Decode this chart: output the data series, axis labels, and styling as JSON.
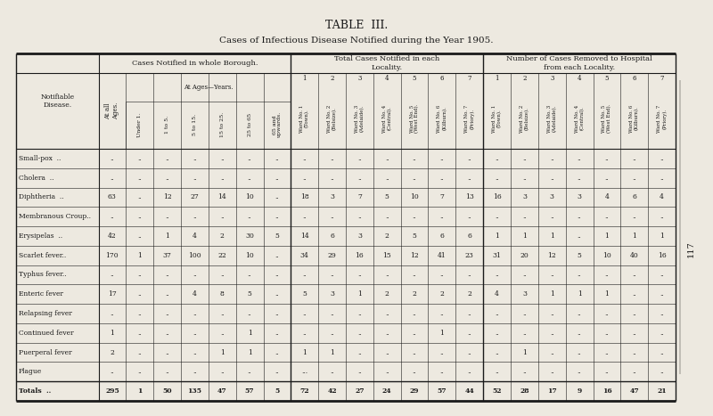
{
  "title": "TABLE  III.",
  "subtitle": "Cases of Infectious Disease Notified during the Year 1905.",
  "bg_color": "#ede9e0",
  "text_color": "#1a1a1a",
  "diseases": [
    "Small-pox  ..",
    "Cholera  ..",
    "Diphtheria  ..",
    "Membranous Croup..",
    "Erysipelas  ..",
    "Scarlet fever..",
    "Typhus fever..",
    "Enteric fever",
    "Relapsing fever",
    "Continued fever",
    "Puerperal fever",
    "Plague",
    "Totals  .."
  ],
  "data": [
    [
      "..",
      "..",
      "..",
      "..",
      "..",
      "..",
      "..",
      "..",
      "..",
      "..",
      "..",
      "..",
      "..",
      "..",
      "..",
      "..",
      "..",
      "..",
      "..",
      "..",
      ".."
    ],
    [
      "..",
      "..",
      "..",
      "..",
      "..",
      "..",
      "..",
      "..",
      "..",
      "..",
      "..",
      "..",
      "..",
      "..",
      "..",
      "..",
      "..",
      "..",
      "..",
      "..",
      ".."
    ],
    [
      "63",
      "..",
      "12",
      "27",
      "14",
      "10",
      "..",
      "18",
      "3",
      "7",
      "5",
      "10",
      "7",
      "13",
      "16",
      "3",
      "3",
      "3",
      "4",
      "6",
      "4"
    ],
    [
      "..",
      "..",
      "..",
      "..",
      "..",
      "..",
      "..",
      "..",
      "..",
      "..",
      "..",
      "..",
      "..",
      "..",
      "..",
      "..",
      "..",
      "..",
      "..",
      "..",
      ".."
    ],
    [
      "42",
      "..",
      "1",
      "4",
      "2",
      "30",
      "5",
      "14",
      "6",
      "3",
      "2",
      "5",
      "6",
      "6",
      "1",
      "1",
      "1",
      "..",
      "1",
      "1",
      "1"
    ],
    [
      "170",
      "1",
      "37",
      "100",
      "22",
      "10",
      "..",
      "34",
      "29",
      "16",
      "15",
      "12",
      "41",
      "23",
      "31",
      "20",
      "12",
      "5",
      "10",
      "40",
      "16"
    ],
    [
      "..",
      "..",
      "..",
      "..",
      "..",
      "..",
      "..",
      "..",
      "..",
      "..",
      "..",
      "..",
      "..",
      "..",
      "..",
      "..",
      "..",
      "..",
      "..",
      "..",
      ".."
    ],
    [
      "17",
      "..",
      "..",
      "4",
      "8",
      "5",
      "..",
      "5",
      "3",
      "1",
      "2",
      "2",
      "2",
      "2",
      "4",
      "3",
      "1",
      "1",
      "1",
      "..",
      ".."
    ],
    [
      "..",
      "..",
      "..",
      "..",
      "..",
      "..",
      "..",
      "..",
      "..",
      "..",
      "..",
      "..",
      "..",
      "..",
      "..",
      "..",
      "..",
      "..",
      "..",
      "..",
      ".."
    ],
    [
      "1",
      "..",
      "..",
      "..",
      "..",
      "1",
      "..",
      "..",
      "..",
      "..",
      "..",
      "..",
      "1",
      "..",
      "..",
      "..",
      "..",
      "..",
      "..",
      "..",
      ".."
    ],
    [
      "2",
      "..",
      "..",
      "..",
      "1",
      "1",
      "..",
      "1",
      "1",
      "..",
      "..",
      "..",
      "..",
      "..",
      "..",
      "1",
      "..",
      "..",
      "..",
      "..",
      ".."
    ],
    [
      "..",
      "..",
      "..",
      "..",
      "..",
      "..",
      "..",
      "...",
      "..",
      "..",
      "..",
      "..",
      "..",
      "..",
      "..",
      "..",
      "..",
      "..",
      "..",
      "..",
      ".."
    ],
    [
      "295",
      "1",
      "50",
      "135",
      "47",
      "57",
      "5",
      "72",
      "42",
      "27",
      "24",
      "29",
      "57",
      "44",
      "52",
      "28",
      "17",
      "9",
      "16",
      "47",
      "21"
    ]
  ]
}
